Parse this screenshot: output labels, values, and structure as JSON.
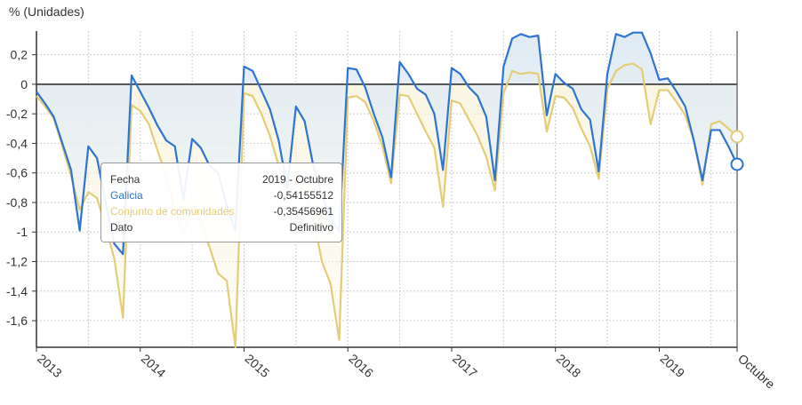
{
  "chart_data": {
    "type": "line",
    "ylabel": "% (Unidades)",
    "ylim": [
      -1.78,
      0.36
    ],
    "yticks": [
      0.2,
      0,
      -0.2,
      -0.4,
      -0.6,
      -0.8,
      -1,
      -1.2,
      -1.4,
      -1.6
    ],
    "ytick_labels": [
      "0,2",
      "0",
      "-0,2",
      "-0,4",
      "-0,6",
      "-0,8",
      "-1",
      "-1,2",
      "-1,4",
      "-1,6"
    ],
    "xtick_labels": [
      "2013",
      "2014",
      "2015",
      "2016",
      "2017",
      "2018",
      "2019",
      "Octubre"
    ],
    "grid": true,
    "x_start": "2013-01",
    "x_end": "2019-10",
    "series": [
      {
        "name": "Galicia",
        "color": "#2f74d0",
        "values": [
          -0.05,
          -0.13,
          -0.22,
          -0.4,
          -0.58,
          -0.99,
          -0.42,
          -0.5,
          -0.8,
          -1.08,
          -1.15,
          0.06,
          -0.05,
          -0.16,
          -0.28,
          -0.38,
          -0.42,
          -0.78,
          -0.37,
          -0.43,
          -0.55,
          -0.6,
          -0.82,
          -0.99,
          0.12,
          0.09,
          -0.04,
          -0.17,
          -0.38,
          -0.7,
          -0.15,
          -0.25,
          -0.55,
          -0.75,
          -0.9,
          -1.0,
          0.11,
          0.1,
          -0.02,
          -0.2,
          -0.36,
          -0.63,
          0.15,
          0.07,
          -0.03,
          -0.07,
          -0.2,
          -0.58,
          0.11,
          0.07,
          -0.02,
          -0.08,
          -0.22,
          -0.65,
          0.12,
          0.31,
          0.34,
          0.32,
          0.33,
          -0.21,
          0.07,
          0.01,
          -0.03,
          -0.17,
          -0.24,
          -0.59,
          0.07,
          0.34,
          0.32,
          0.35,
          0.35,
          0.21,
          0.03,
          0.04,
          -0.05,
          -0.15,
          -0.38,
          -0.65,
          -0.31,
          -0.31,
          -0.42,
          -0.54155512
        ]
      },
      {
        "name": "Conjunto de comunidades",
        "color": "#e3cd76",
        "values": [
          -0.08,
          -0.15,
          -0.23,
          -0.42,
          -0.62,
          -0.85,
          -0.73,
          -0.77,
          -0.97,
          -1.18,
          -1.58,
          -0.14,
          -0.18,
          -0.27,
          -0.45,
          -0.62,
          -0.85,
          -1.02,
          -0.82,
          -0.93,
          -1.1,
          -1.28,
          -1.33,
          -1.78,
          -0.06,
          -0.08,
          -0.2,
          -0.35,
          -0.55,
          -0.75,
          -0.65,
          -0.72,
          -0.9,
          -1.2,
          -1.35,
          -1.73,
          -0.09,
          -0.08,
          -0.12,
          -0.25,
          -0.42,
          -0.67,
          -0.07,
          -0.08,
          -0.2,
          -0.32,
          -0.43,
          -0.83,
          -0.11,
          -0.13,
          -0.24,
          -0.35,
          -0.49,
          -0.72,
          -0.06,
          0.09,
          0.07,
          0.08,
          0.07,
          -0.32,
          -0.08,
          -0.09,
          -0.16,
          -0.3,
          -0.42,
          -0.64,
          -0.03,
          0.09,
          0.13,
          0.14,
          0.1,
          -0.27,
          -0.04,
          -0.04,
          -0.12,
          -0.21,
          -0.38,
          -0.68,
          -0.27,
          -0.25,
          -0.3,
          -0.35456961
        ]
      }
    ]
  },
  "tooltip": {
    "rows": [
      {
        "key": "Fecha",
        "value": "2019 - Octubre",
        "color": "#333333"
      },
      {
        "key": "Galicia",
        "value": "-0,54155512",
        "color": "#2f74d0"
      },
      {
        "key": "Conjunto de comunidades",
        "value": "-0,35456961",
        "color": "#e3cd76"
      },
      {
        "key": "Dato",
        "value": "Definitivo",
        "color": "#333333"
      }
    ]
  }
}
